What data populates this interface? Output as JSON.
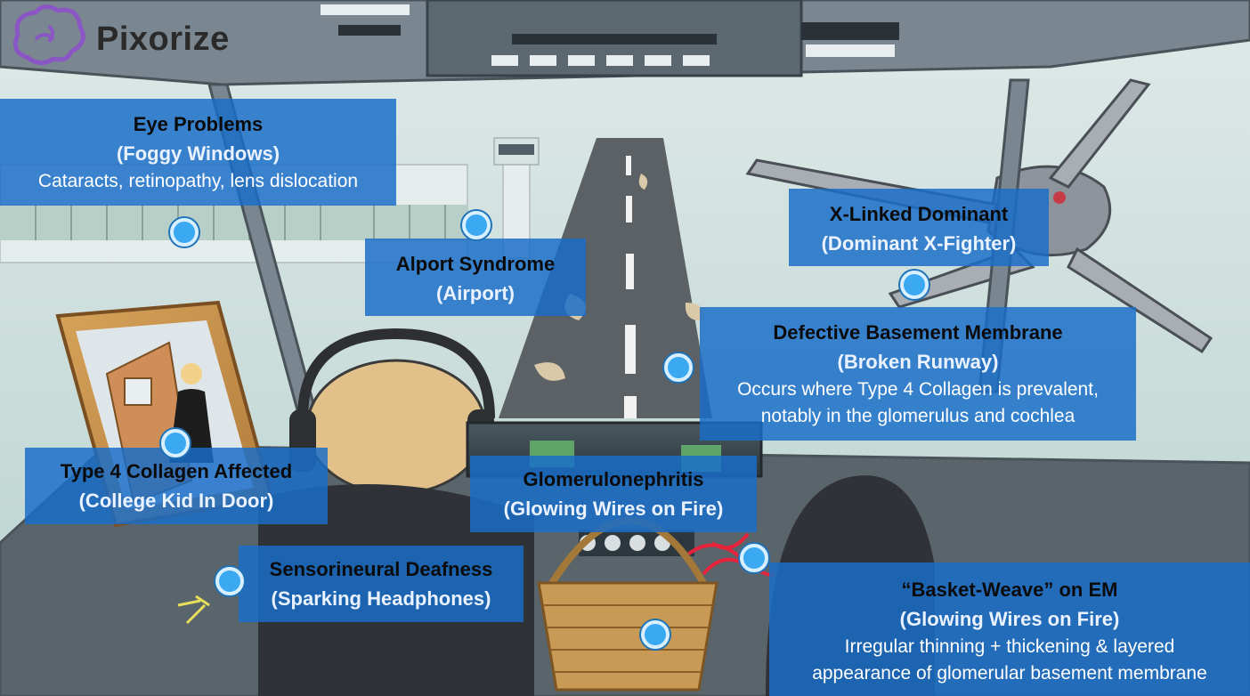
{
  "brand": {
    "name": "Pixorize",
    "icon": "brain-icon",
    "color": "#8a55c4"
  },
  "colors": {
    "box": "#1e6ec8",
    "hotspot": "#3aa9f2"
  },
  "labels": [
    {
      "id": "eye-problems",
      "title": "Eye Problems",
      "subtitle": "(Foggy Windows)",
      "detail": [
        "Cataracts, retinopathy, lens dislocation"
      ]
    },
    {
      "id": "alport-syndrome",
      "title": "Alport Syndrome",
      "subtitle": "(Airport)",
      "detail": []
    },
    {
      "id": "x-linked-dominant",
      "title": "X-Linked Dominant",
      "subtitle": "(Dominant X-Fighter)",
      "detail": []
    },
    {
      "id": "defective-basement-membrane",
      "title": "Defective Basement Membrane",
      "subtitle": "(Broken Runway)",
      "detail": [
        "Occurs where Type 4 Collagen is prevalent,",
        "notably in the glomerulus and cochlea"
      ]
    },
    {
      "id": "type4-collagen",
      "title": "Type 4 Collagen Affected",
      "subtitle": "(College Kid In Door)",
      "detail": []
    },
    {
      "id": "glomerulonephritis",
      "title": "Glomerulonephritis",
      "subtitle": "(Glowing Wires on Fire)",
      "detail": []
    },
    {
      "id": "sensorineural-deafness",
      "title": "Sensorineural Deafness",
      "subtitle": "(Sparking Headphones)",
      "detail": []
    },
    {
      "id": "basket-weave",
      "title": "“Basket-Weave” on EM",
      "subtitle": "(Glowing Wires on Fire)",
      "detail": [
        "Irregular thinning + thickening & layered",
        "appearance of glomerular basement membrane"
      ]
    }
  ]
}
